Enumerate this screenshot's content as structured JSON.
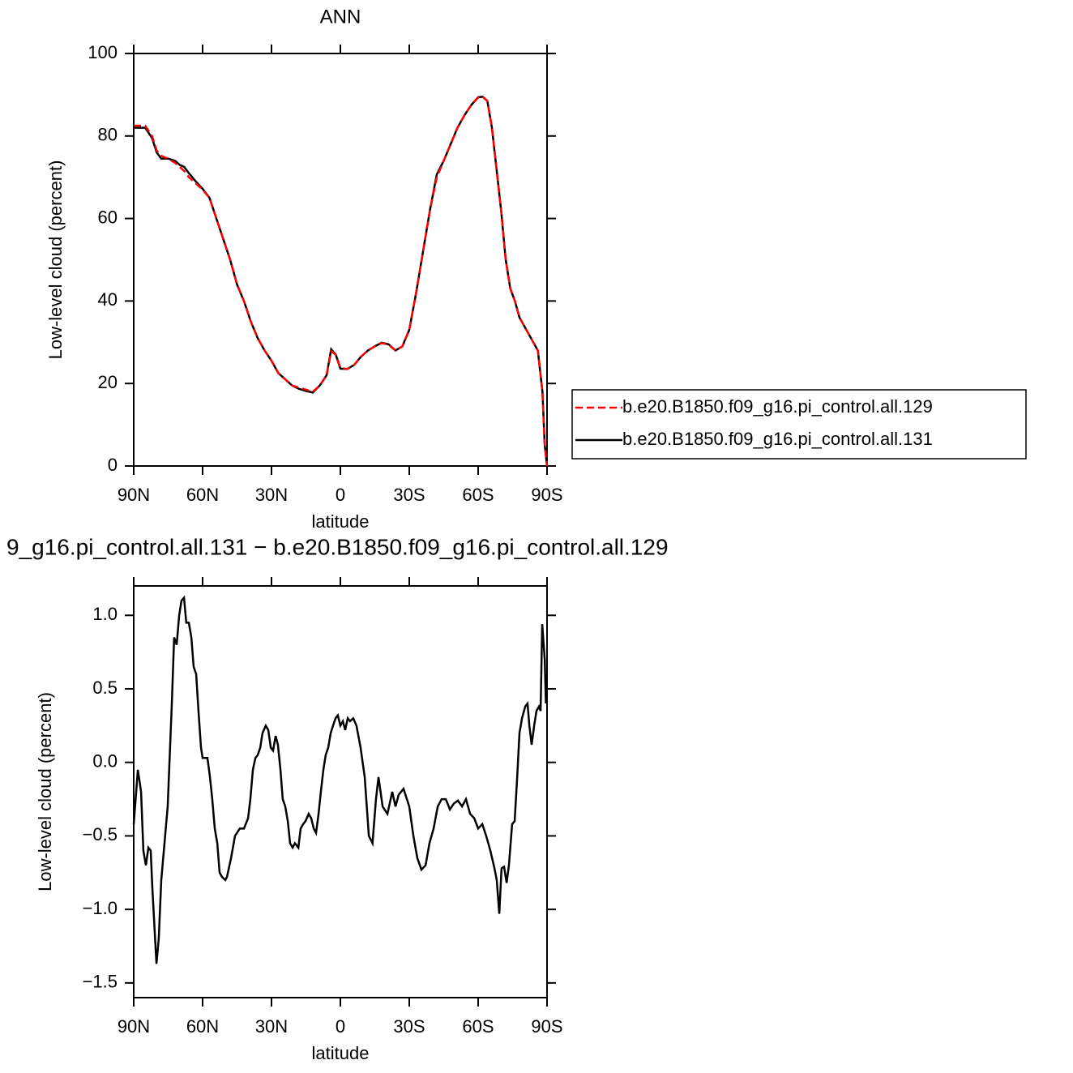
{
  "chart_data": [
    {
      "type": "line",
      "title": "ANN",
      "x_label": "latitude",
      "y_label": "Low-level cloud (percent)",
      "xlim": [
        90,
        -90
      ],
      "ylim": [
        0,
        100
      ],
      "xticks": [
        {
          "value": 90,
          "label": "90N"
        },
        {
          "value": 60,
          "label": "60N"
        },
        {
          "value": 30,
          "label": "30N"
        },
        0,
        {
          "value": -30,
          "label": "30S"
        },
        {
          "value": -60,
          "label": "60S"
        },
        {
          "value": -90,
          "label": "90S"
        }
      ],
      "yticks": [
        0,
        20,
        40,
        60,
        80,
        100
      ],
      "legend": "right",
      "x": [
        90,
        85,
        82,
        80,
        78,
        75,
        72,
        70,
        68,
        66,
        63,
        60,
        57,
        54,
        51,
        48,
        45,
        42,
        39,
        36,
        33,
        30,
        27,
        24,
        21,
        18,
        15,
        12,
        9,
        6,
        4,
        2,
        0,
        -3,
        -6,
        -9,
        -12,
        -15,
        -18,
        -21,
        -24,
        -27,
        -30,
        -33,
        -36,
        -39,
        -42,
        -45,
        -48,
        -51,
        -54,
        -57,
        -60,
        -62,
        -64,
        -66,
        -68,
        -70,
        -72,
        -74,
        -76,
        -78,
        -80,
        -82,
        -84,
        -86,
        -88,
        -89,
        -90
      ],
      "series": [
        {
          "name": "b.e20.B1850.f09_g16.pi_control.all.129",
          "color": "#ff0000",
          "dash": true,
          "values": [
            82.5,
            82.5,
            80,
            76.5,
            75.2,
            74.5,
            73.5,
            72.5,
            71.5,
            70,
            68.5,
            67,
            65,
            60,
            55,
            50,
            44,
            40,
            35,
            31,
            28,
            25.5,
            22.5,
            21,
            19.5,
            19,
            18.5,
            18,
            19.5,
            22,
            27.8,
            27,
            23.8,
            23.5,
            24.5,
            26.5,
            28,
            29,
            29.8,
            29.4,
            28,
            29,
            33,
            42,
            52,
            62,
            70,
            74,
            78,
            82,
            85,
            87.5,
            89.3,
            89.5,
            88.5,
            82,
            72,
            62,
            50,
            43,
            40,
            36,
            34,
            32,
            30,
            28,
            18,
            5,
            0
          ]
        },
        {
          "name": "b.e20.B1850.f09_g16.pi_control.all.131",
          "color": "#000000",
          "dash": false,
          "values": [
            82,
            82,
            79.5,
            76,
            74.5,
            74.5,
            74,
            73,
            72.5,
            71,
            69,
            67.2,
            65,
            60,
            55,
            50,
            44,
            40,
            35,
            31,
            28,
            25.5,
            22.5,
            21,
            19.5,
            18.7,
            18.2,
            17.8,
            19.5,
            22,
            28.3,
            27,
            23.6,
            23.5,
            24.5,
            26.5,
            28,
            29,
            29.9,
            29.5,
            28,
            29,
            33,
            42,
            52,
            62,
            70.7,
            74,
            78,
            82,
            85,
            87.5,
            89.4,
            89.5,
            88.5,
            82,
            72,
            62,
            50,
            43,
            40,
            36,
            34,
            32,
            30,
            28,
            18,
            5,
            0
          ]
        }
      ]
    },
    {
      "type": "line",
      "title": "9_g16.pi_control.all.131 − b.e20.B1850.f09_g16.pi_control.all.129",
      "x_label": "latitude",
      "y_label": "Low-level cloud (percent)",
      "xlim": [
        90,
        -90
      ],
      "ylim": [
        -1.6,
        1.2
      ],
      "xticks": [
        {
          "value": 90,
          "label": "90N"
        },
        {
          "value": 60,
          "label": "60N"
        },
        {
          "value": 30,
          "label": "30N"
        },
        0,
        {
          "value": -30,
          "label": "30S"
        },
        {
          "value": -60,
          "label": "60S"
        },
        {
          "value": -90,
          "label": "90S"
        }
      ],
      "yticks": [
        {
          "value": -1.5,
          "label": "−1.5"
        },
        {
          "value": -1,
          "label": "−1.0"
        },
        {
          "value": -0.5,
          "label": "−0.5"
        },
        {
          "value": 0,
          "label": "0.0"
        },
        0.5,
        {
          "value": 1,
          "label": "1.0"
        }
      ],
      "x": [
        90,
        88.2,
        86.8,
        85.8,
        84.7,
        83.6,
        82.6,
        81.9,
        80.1,
        79.1,
        78,
        75.2,
        73.4,
        72.4,
        71.3,
        70.2,
        69.2,
        68.1,
        67.1,
        66,
        64.9,
        63.9,
        62.8,
        61.8,
        60.7,
        60,
        57.9,
        56.8,
        55.8,
        54.7,
        53.6,
        52.6,
        51.5,
        50.1,
        49.4,
        47.6,
        45.9,
        43.8,
        42,
        40.2,
        39.2,
        38.1,
        37,
        36,
        34.9,
        33.9,
        32.5,
        31.4,
        30.3,
        29.3,
        28.2,
        27.2,
        26.1,
        25.1,
        24,
        22.9,
        21.9,
        20.8,
        19.8,
        18.3,
        17.3,
        16.2,
        15.2,
        13.8,
        12.7,
        11.6,
        10.6,
        9.5,
        8.5,
        7.4,
        6.4,
        5.3,
        4.2,
        3.2,
        2.1,
        1.1,
        0,
        -1.1,
        -2.1,
        -3.2,
        -4.2,
        -5.6,
        -7,
        -8.8,
        -10.6,
        -12.4,
        -14,
        -15.5,
        -16.6,
        -18.4,
        -20.5,
        -22.6,
        -24,
        -25.4,
        -27.5,
        -30,
        -31.8,
        -33.5,
        -35.3,
        -37.1,
        -38.8,
        -40.6,
        -42.4,
        -44.1,
        -45.9,
        -47.7,
        -49.4,
        -51.2,
        -53,
        -54.7,
        -56.5,
        -58.3,
        -60,
        -61.8,
        -63.5,
        -65.3,
        -67.1,
        -68.1,
        -69.2,
        -70.2,
        -71.3,
        -72.4,
        -73.4,
        -74.8,
        -75.9,
        -77,
        -78,
        -79.1,
        -80.5,
        -81.5,
        -82.3,
        -83.3,
        -84.4,
        -85.4,
        -86.5,
        -87.2,
        -87.9,
        -89,
        -89.5
      ],
      "series": [
        {
          "color": "#000000",
          "dash": false,
          "values": [
            -0.42,
            -0.05,
            -0.2,
            -0.6,
            -0.7,
            -0.58,
            -0.6,
            -0.85,
            -1.37,
            -1.2,
            -0.8,
            -0.3,
            0.4,
            0.85,
            0.8,
            1.0,
            1.1,
            1.12,
            0.95,
            0.95,
            0.85,
            0.65,
            0.6,
            0.35,
            0.1,
            0.03,
            0.03,
            -0.1,
            -0.25,
            -0.45,
            -0.55,
            -0.75,
            -0.78,
            -0.8,
            -0.78,
            -0.65,
            -0.5,
            -0.45,
            -0.45,
            -0.38,
            -0.25,
            -0.05,
            0.03,
            0.05,
            0.1,
            0.2,
            0.25,
            0.22,
            0.1,
            0.08,
            0.18,
            0.12,
            -0.05,
            -0.25,
            -0.3,
            -0.4,
            -0.55,
            -0.58,
            -0.55,
            -0.58,
            -0.45,
            -0.42,
            -0.4,
            -0.35,
            -0.38,
            -0.45,
            -0.48,
            -0.35,
            -0.2,
            -0.05,
            0.05,
            0.1,
            0.2,
            0.25,
            0.3,
            0.32,
            0.25,
            0.28,
            0.22,
            0.3,
            0.28,
            0.3,
            0.25,
            0.1,
            -0.1,
            -0.5,
            -0.55,
            -0.25,
            -0.1,
            -0.3,
            -0.35,
            -0.2,
            -0.3,
            -0.22,
            -0.18,
            -0.3,
            -0.5,
            -0.65,
            -0.73,
            -0.7,
            -0.55,
            -0.45,
            -0.3,
            -0.25,
            -0.25,
            -0.32,
            -0.28,
            -0.26,
            -0.3,
            -0.25,
            -0.35,
            -0.38,
            -0.45,
            -0.42,
            -0.5,
            -0.6,
            -0.72,
            -0.8,
            -1.03,
            -0.72,
            -0.71,
            -0.82,
            -0.7,
            -0.42,
            -0.4,
            -0.1,
            0.2,
            0.3,
            0.38,
            0.4,
            0.25,
            0.12,
            0.25,
            0.35,
            0.38,
            0.35,
            0.94,
            0.7,
            0.4
          ]
        }
      ]
    }
  ]
}
